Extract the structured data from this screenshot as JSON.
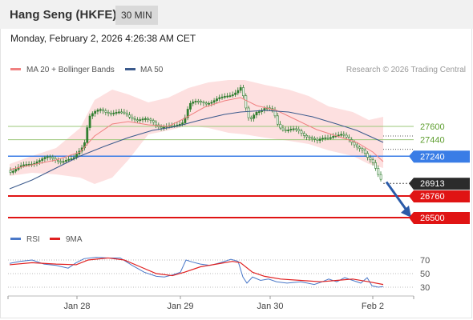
{
  "header": {
    "title": "Hang Seng (HKFE)",
    "timeframe": "30 MIN",
    "datetime": "Monday, February 2, 2026 4:26:38 AM CET"
  },
  "legend": {
    "ma20_bb": "MA 20 + Bollinger Bands",
    "ma50": "MA 50",
    "credit": "Research © 2026 Trading Central",
    "ma20_color": "#f08080",
    "ma50_color": "#3b5a8c"
  },
  "rsi_legend": {
    "rsi": "RSI",
    "ma9": "9MA",
    "rsi_color": "#4a78c8",
    "ma9_color": "#e02020"
  },
  "chart_data": [
    {
      "type": "candlestick",
      "x_tick_labels": [
        "Jan 28",
        "Jan 29",
        "Jan 30",
        "Feb 2"
      ],
      "ylim": [
        26440,
        27690
      ],
      "levels": [
        {
          "value": 27600,
          "label": "27600",
          "kind": "resistance",
          "color": "#9bc77a"
        },
        {
          "value": 27440,
          "label": "27440",
          "kind": "resistance",
          "color": "#9bc77a"
        },
        {
          "value": 27240,
          "label": "27240",
          "kind": "pivot",
          "color": "#3a7de6"
        },
        {
          "value": 26913,
          "label": "26913",
          "kind": "last-price",
          "color": "#333333"
        },
        {
          "value": 26760,
          "label": "26760",
          "kind": "support",
          "color": "#e01414"
        },
        {
          "value": 26500,
          "label": "26500",
          "kind": "support",
          "color": "#e01414"
        }
      ],
      "forecast_arrow": {
        "from": 26930,
        "to": 26520,
        "color": "#2a5aa8"
      },
      "candle_color": "#2e7d2e",
      "bb_fill": "#fde0e0"
    },
    {
      "type": "line",
      "ylim": [
        20,
        80
      ],
      "ticks": [
        70,
        50,
        30
      ]
    }
  ]
}
